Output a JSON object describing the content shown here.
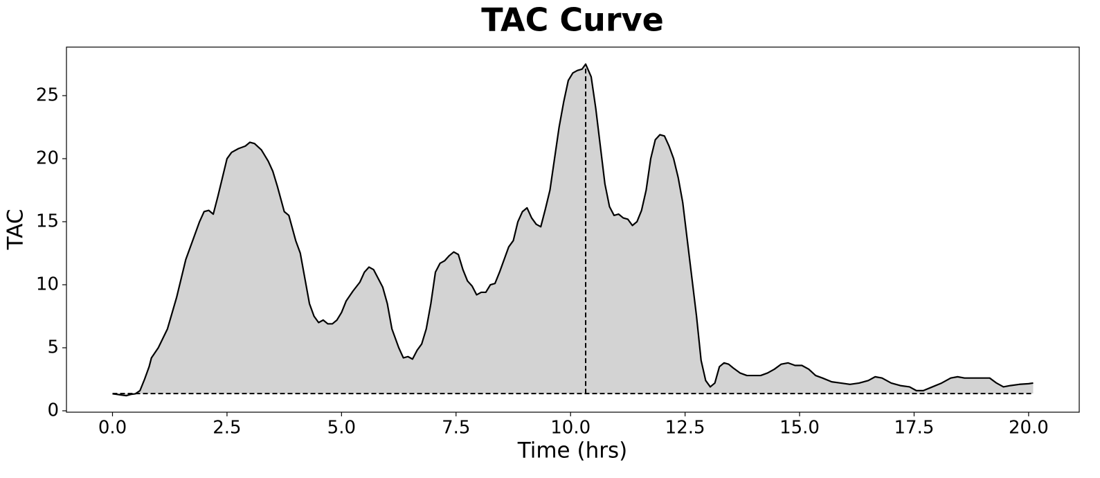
{
  "chart_data": {
    "type": "area",
    "title": "TAC Curve",
    "x_label": "Time (hrs)",
    "y_label": "TAC",
    "color": "#000000",
    "fill_color": "#d3d3d3",
    "baseline": 1.37,
    "peak_x": 10.33,
    "peak_y": 27.5,
    "xlim": [
      -1.005,
      21.105
    ],
    "ylim": [
      -0.11,
      28.85
    ],
    "xticks": [
      {
        "value": 0,
        "label": "0.0"
      },
      2.5,
      {
        "value": 5,
        "label": "5.0"
      },
      7.5,
      {
        "value": 10,
        "label": "10.0"
      },
      12.5,
      {
        "value": 15,
        "label": "15.0"
      },
      17.5,
      {
        "value": 20,
        "label": "20.0"
      }
    ],
    "yticks": [
      0,
      5,
      10,
      15,
      20,
      25
    ],
    "x": [
      0.0,
      0.1,
      0.2,
      0.3,
      0.4,
      0.5,
      0.6,
      0.7,
      0.8,
      0.85,
      1.0,
      1.2,
      1.4,
      1.6,
      1.75,
      1.9,
      2.0,
      2.1,
      2.2,
      2.3,
      2.4,
      2.5,
      2.6,
      2.75,
      2.9,
      3.0,
      3.1,
      3.25,
      3.4,
      3.5,
      3.6,
      3.75,
      3.85,
      4.0,
      4.1,
      4.2,
      4.3,
      4.4,
      4.5,
      4.6,
      4.7,
      4.8,
      4.9,
      5.0,
      5.1,
      5.25,
      5.4,
      5.5,
      5.6,
      5.7,
      5.8,
      5.9,
      6.0,
      6.1,
      6.25,
      6.35,
      6.45,
      6.55,
      6.65,
      6.75,
      6.85,
      6.95,
      7.05,
      7.15,
      7.25,
      7.35,
      7.45,
      7.55,
      7.65,
      7.75,
      7.85,
      7.95,
      8.05,
      8.15,
      8.25,
      8.35,
      8.45,
      8.55,
      8.65,
      8.75,
      8.85,
      8.95,
      9.05,
      9.15,
      9.25,
      9.35,
      9.45,
      9.55,
      9.65,
      9.75,
      9.85,
      9.95,
      10.05,
      10.15,
      10.25,
      10.33,
      10.45,
      10.55,
      10.65,
      10.75,
      10.85,
      10.95,
      11.05,
      11.15,
      11.25,
      11.35,
      11.45,
      11.55,
      11.65,
      11.75,
      11.85,
      11.95,
      12.05,
      12.15,
      12.25,
      12.35,
      12.45,
      12.55,
      12.65,
      12.75,
      12.85,
      12.95,
      13.05,
      13.15,
      13.25,
      13.35,
      13.45,
      13.55,
      13.7,
      13.85,
      14.0,
      14.15,
      14.3,
      14.45,
      14.6,
      14.75,
      14.9,
      15.05,
      15.2,
      15.35,
      15.5,
      15.7,
      15.9,
      16.1,
      16.3,
      16.5,
      16.65,
      16.8,
      17.0,
      17.2,
      17.4,
      17.55,
      17.7,
      17.9,
      18.1,
      18.3,
      18.45,
      18.6,
      18.8,
      19.0,
      19.15,
      19.3,
      19.45,
      19.6,
      19.8,
      20.0,
      20.1
    ],
    "values": [
      1.35,
      1.3,
      1.25,
      1.2,
      1.3,
      1.35,
      1.6,
      2.5,
      3.5,
      4.2,
      5.0,
      6.5,
      9.0,
      12.0,
      13.5,
      15.0,
      15.8,
      15.9,
      15.6,
      17.0,
      18.5,
      20.0,
      20.5,
      20.8,
      21.0,
      21.3,
      21.2,
      20.7,
      19.8,
      19.0,
      17.8,
      15.8,
      15.5,
      13.5,
      12.5,
      10.5,
      8.5,
      7.5,
      7.0,
      7.2,
      6.9,
      6.9,
      7.2,
      7.8,
      8.7,
      9.5,
      10.2,
      11.0,
      11.4,
      11.2,
      10.5,
      9.8,
      8.5,
      6.5,
      5.0,
      4.2,
      4.3,
      4.1,
      4.8,
      5.3,
      6.5,
      8.5,
      11.0,
      11.7,
      11.9,
      12.3,
      12.6,
      12.4,
      11.2,
      10.3,
      9.9,
      9.2,
      9.4,
      9.4,
      10.0,
      10.1,
      11.0,
      12.0,
      13.0,
      13.5,
      15.0,
      15.8,
      16.1,
      15.3,
      14.8,
      14.6,
      16.0,
      17.5,
      20.0,
      22.5,
      24.5,
      26.2,
      26.8,
      27.0,
      27.1,
      27.5,
      26.5,
      24.0,
      21.0,
      18.0,
      16.2,
      15.5,
      15.6,
      15.3,
      15.2,
      14.7,
      15.0,
      15.9,
      17.5,
      20.0,
      21.5,
      21.9,
      21.8,
      21.0,
      20.0,
      18.5,
      16.5,
      13.5,
      10.5,
      7.5,
      4.0,
      2.4,
      1.9,
      2.2,
      3.5,
      3.8,
      3.7,
      3.4,
      3.0,
      2.8,
      2.8,
      2.8,
      3.0,
      3.3,
      3.7,
      3.8,
      3.6,
      3.6,
      3.3,
      2.8,
      2.6,
      2.3,
      2.2,
      2.1,
      2.2,
      2.4,
      2.7,
      2.6,
      2.2,
      2.0,
      1.9,
      1.6,
      1.6,
      1.9,
      2.2,
      2.6,
      2.7,
      2.6,
      2.6,
      2.6,
      2.6,
      2.2,
      1.9,
      2.0,
      2.1,
      2.15,
      2.2
    ]
  }
}
